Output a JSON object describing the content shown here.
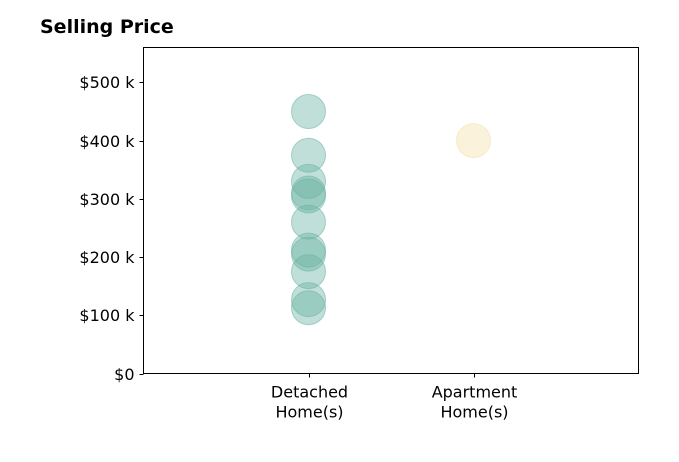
{
  "chart_data": {
    "type": "scatter",
    "title": "Selling Price",
    "xlabel": "",
    "ylabel": "",
    "categories": [
      {
        "line1": "Detached",
        "line2": "Home(s)"
      },
      {
        "line1": "Apartment",
        "line2": "Home(s)"
      }
    ],
    "xlim": [
      0,
      3
    ],
    "ylim": [
      0,
      560000
    ],
    "yticks": [
      {
        "value": 0,
        "label": "$0"
      },
      {
        "value": 100000,
        "label": "$100 k"
      },
      {
        "value": 200000,
        "label": "$200 k"
      },
      {
        "value": 300000,
        "label": "$300 k"
      },
      {
        "value": 400000,
        "label": "$400 k"
      },
      {
        "value": 500000,
        "label": "$500 k"
      }
    ],
    "grid": false,
    "series": [
      {
        "color": "#69b3a2",
        "points": [
          {
            "x": 1,
            "y": 450000
          },
          {
            "x": 1,
            "y": 375000
          },
          {
            "x": 1,
            "y": 330000
          },
          {
            "x": 1,
            "y": 310000
          },
          {
            "x": 1,
            "y": 305000
          },
          {
            "x": 1,
            "y": 260000
          },
          {
            "x": 1,
            "y": 212000
          },
          {
            "x": 1,
            "y": 205000
          },
          {
            "x": 1,
            "y": 175000
          },
          {
            "x": 1,
            "y": 127000
          },
          {
            "x": 1,
            "y": 113000
          }
        ]
      },
      {
        "color": "#f4dfa8",
        "points": [
          {
            "x": 2,
            "y": 400000
          }
        ]
      }
    ]
  }
}
